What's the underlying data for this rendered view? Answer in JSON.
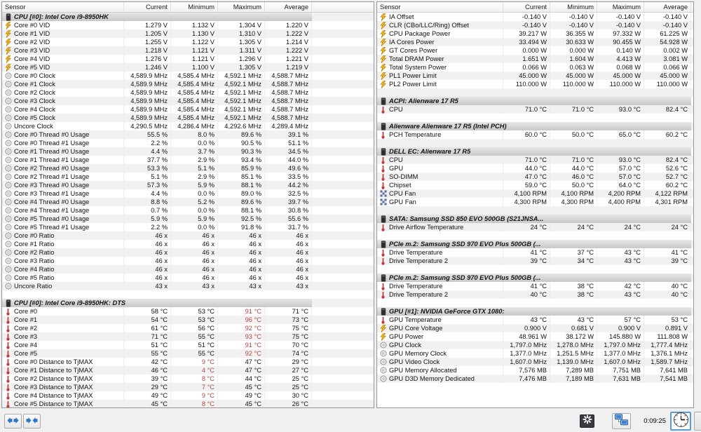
{
  "columns": [
    "Sensor",
    "Current",
    "Minimum",
    "Maximum",
    "Average"
  ],
  "colors": {
    "accent_blue": "#2f74c0",
    "alert_red": "#b34545",
    "group_band": "#c8c8c8",
    "stripe": "#f1f1f1"
  },
  "statusbar": {
    "time": "0:09:25"
  },
  "left_panel": {
    "rows": [
      {
        "t": "group",
        "icon": "chip-icon",
        "label": "CPU [#0]: Intel Core i9-8950HK"
      },
      {
        "t": "row",
        "icon": "voltage-icon",
        "label": "Core #0 VID",
        "v": [
          "1.279 V",
          "1.132 V",
          "1.304 V",
          "1.220 V"
        ]
      },
      {
        "t": "row",
        "icon": "voltage-icon",
        "label": "Core #1 VID",
        "v": [
          "1.205 V",
          "1.130 V",
          "1.310 V",
          "1.222 V"
        ]
      },
      {
        "t": "row",
        "icon": "voltage-icon",
        "label": "Core #2 VID",
        "v": [
          "1.255 V",
          "1.122 V",
          "1.305 V",
          "1.214 V"
        ]
      },
      {
        "t": "row",
        "icon": "voltage-icon",
        "label": "Core #3 VID",
        "v": [
          "1.218 V",
          "1.121 V",
          "1.311 V",
          "1.222 V"
        ]
      },
      {
        "t": "row",
        "icon": "voltage-icon",
        "label": "Core #4 VID",
        "v": [
          "1.276 V",
          "1.121 V",
          "1.296 V",
          "1.221 V"
        ]
      },
      {
        "t": "row",
        "icon": "voltage-icon",
        "label": "Core #5 VID",
        "v": [
          "1.246 V",
          "1.100 V",
          "1.305 V",
          "1.219 V"
        ]
      },
      {
        "t": "row",
        "icon": "clock-icon",
        "label": "Core #0 Clock",
        "v": [
          "4,589.9 MHz",
          "4,585.4 MHz",
          "4,592.1 MHz",
          "4,588.7 MHz"
        ]
      },
      {
        "t": "row",
        "icon": "clock-icon",
        "label": "Core #1 Clock",
        "v": [
          "4,589.9 MHz",
          "4,585.4 MHz",
          "4,592.1 MHz",
          "4,588.7 MHz"
        ]
      },
      {
        "t": "row",
        "icon": "clock-icon",
        "label": "Core #2 Clock",
        "v": [
          "4,589.9 MHz",
          "4,585.4 MHz",
          "4,592.1 MHz",
          "4,588.7 MHz"
        ]
      },
      {
        "t": "row",
        "icon": "clock-icon",
        "label": "Core #3 Clock",
        "v": [
          "4,589.9 MHz",
          "4,585.4 MHz",
          "4,592.1 MHz",
          "4,588.7 MHz"
        ]
      },
      {
        "t": "row",
        "icon": "clock-icon",
        "label": "Core #4 Clock",
        "v": [
          "4,589.9 MHz",
          "4,585.4 MHz",
          "4,592.1 MHz",
          "4,588.7 MHz"
        ]
      },
      {
        "t": "row",
        "icon": "clock-icon",
        "label": "Core #5 Clock",
        "v": [
          "4,589.9 MHz",
          "4,585.4 MHz",
          "4,592.1 MHz",
          "4,588.7 MHz"
        ]
      },
      {
        "t": "row",
        "icon": "clock-icon",
        "label": "Uncore Clock",
        "v": [
          "4,290.5 MHz",
          "4,286.4 MHz",
          "4,292.6 MHz",
          "4,289.4 MHz"
        ]
      },
      {
        "t": "row",
        "icon": "clock-icon",
        "label": "Core #0 Thread #0 Usage",
        "v": [
          "55.5 %",
          "8.0 %",
          "89.6 %",
          "39.1 %"
        ]
      },
      {
        "t": "row",
        "icon": "clock-icon",
        "label": "Core #0 Thread #1 Usage",
        "v": [
          "2.2 %",
          "0.0 %",
          "90.5 %",
          "51.1 %"
        ]
      },
      {
        "t": "row",
        "icon": "clock-icon",
        "label": "Core #1 Thread #0 Usage",
        "v": [
          "4.4 %",
          "3.7 %",
          "90.3 %",
          "34.5 %"
        ]
      },
      {
        "t": "row",
        "icon": "clock-icon",
        "label": "Core #1 Thread #1 Usage",
        "v": [
          "37.7 %",
          "2.9 %",
          "93.4 %",
          "44.0 %"
        ]
      },
      {
        "t": "row",
        "icon": "clock-icon",
        "label": "Core #2 Thread #0 Usage",
        "v": [
          "53.3 %",
          "5.1 %",
          "85.9 %",
          "49.6 %"
        ]
      },
      {
        "t": "row",
        "icon": "clock-icon",
        "label": "Core #2 Thread #1 Usage",
        "v": [
          "5.1 %",
          "2.9 %",
          "85.1 %",
          "33.5 %"
        ]
      },
      {
        "t": "row",
        "icon": "clock-icon",
        "label": "Core #3 Thread #0 Usage",
        "v": [
          "57.3 %",
          "5.9 %",
          "88.1 %",
          "44.2 %"
        ]
      },
      {
        "t": "row",
        "icon": "clock-icon",
        "label": "Core #3 Thread #1 Usage",
        "v": [
          "4.4 %",
          "0.0 %",
          "89.0 %",
          "32.5 %"
        ]
      },
      {
        "t": "row",
        "icon": "clock-icon",
        "label": "Core #4 Thread #0 Usage",
        "v": [
          "8.8 %",
          "5.2 %",
          "89.6 %",
          "39.7 %"
        ]
      },
      {
        "t": "row",
        "icon": "clock-icon",
        "label": "Core #4 Thread #1 Usage",
        "v": [
          "0.7 %",
          "0.0 %",
          "88.1 %",
          "30.8 %"
        ]
      },
      {
        "t": "row",
        "icon": "clock-icon",
        "label": "Core #5 Thread #0 Usage",
        "v": [
          "5.9 %",
          "5.9 %",
          "92.5 %",
          "55.6 %"
        ]
      },
      {
        "t": "row",
        "icon": "clock-icon",
        "label": "Core #5 Thread #1 Usage",
        "v": [
          "2.2 %",
          "0.0 %",
          "91.8 %",
          "31.7 %"
        ]
      },
      {
        "t": "row",
        "icon": "clock-icon",
        "label": "Core #0 Ratio",
        "v": [
          "46 x",
          "46 x",
          "46 x",
          "46 x"
        ]
      },
      {
        "t": "row",
        "icon": "clock-icon",
        "label": "Core #1 Ratio",
        "v": [
          "46 x",
          "46 x",
          "46 x",
          "46 x"
        ]
      },
      {
        "t": "row",
        "icon": "clock-icon",
        "label": "Core #2 Ratio",
        "v": [
          "46 x",
          "46 x",
          "46 x",
          "46 x"
        ]
      },
      {
        "t": "row",
        "icon": "clock-icon",
        "label": "Core #3 Ratio",
        "v": [
          "46 x",
          "46 x",
          "46 x",
          "46 x"
        ]
      },
      {
        "t": "row",
        "icon": "clock-icon",
        "label": "Core #4 Ratio",
        "v": [
          "46 x",
          "46 x",
          "46 x",
          "46 x"
        ]
      },
      {
        "t": "row",
        "icon": "clock-icon",
        "label": "Core #5 Ratio",
        "v": [
          "46 x",
          "46 x",
          "46 x",
          "46 x"
        ]
      },
      {
        "t": "row",
        "icon": "clock-icon",
        "label": "Uncore Ratio",
        "v": [
          "43 x",
          "43 x",
          "43 x",
          "43 x"
        ]
      },
      {
        "t": "blank"
      },
      {
        "t": "group",
        "icon": "chip-icon",
        "label": "CPU [#0]: Intel Core i9-8950HK: DTS"
      },
      {
        "t": "row",
        "icon": "temperature-icon",
        "label": "Core #0",
        "v": [
          "58 °C",
          "53 °C",
          "91 °C",
          "71 °C"
        ],
        "red": [
          2
        ]
      },
      {
        "t": "row",
        "icon": "temperature-icon",
        "label": "Core #1",
        "v": [
          "54 °C",
          "53 °C",
          "96 °C",
          "73 °C"
        ],
        "red": [
          2
        ]
      },
      {
        "t": "row",
        "icon": "temperature-icon",
        "label": "Core #2",
        "v": [
          "61 °C",
          "56 °C",
          "92 °C",
          "75 °C"
        ],
        "red": [
          2
        ]
      },
      {
        "t": "row",
        "icon": "temperature-icon",
        "label": "Core #3",
        "v": [
          "71 °C",
          "55 °C",
          "93 °C",
          "75 °C"
        ],
        "red": [
          2
        ]
      },
      {
        "t": "row",
        "icon": "temperature-icon",
        "label": "Core #4",
        "v": [
          "51 °C",
          "51 °C",
          "91 °C",
          "70 °C"
        ],
        "red": [
          2
        ]
      },
      {
        "t": "row",
        "icon": "temperature-icon",
        "label": "Core #5",
        "v": [
          "55 °C",
          "55 °C",
          "92 °C",
          "74 °C"
        ],
        "red": [
          2
        ]
      },
      {
        "t": "row",
        "icon": "temperature-icon",
        "label": "Core #0 Distance to TjMAX",
        "v": [
          "42 °C",
          "9 °C",
          "47 °C",
          "29 °C"
        ],
        "red": [
          1
        ]
      },
      {
        "t": "row",
        "icon": "temperature-icon",
        "label": "Core #1 Distance to TjMAX",
        "v": [
          "46 °C",
          "4 °C",
          "47 °C",
          "27 °C"
        ],
        "red": [
          1
        ]
      },
      {
        "t": "row",
        "icon": "temperature-icon",
        "label": "Core #2 Distance to TjMAX",
        "v": [
          "39 °C",
          "8 °C",
          "44 °C",
          "25 °C"
        ],
        "red": [
          1
        ]
      },
      {
        "t": "row",
        "icon": "temperature-icon",
        "label": "Core #3 Distance to TjMAX",
        "v": [
          "29 °C",
          "7 °C",
          "45 °C",
          "25 °C"
        ],
        "red": [
          1
        ]
      },
      {
        "t": "row",
        "icon": "temperature-icon",
        "label": "Core #4 Distance to TjMAX",
        "v": [
          "49 °C",
          "9 °C",
          "49 °C",
          "30 °C"
        ],
        "red": [
          1
        ]
      },
      {
        "t": "row",
        "icon": "temperature-icon",
        "label": "Core #5 Distance to TjMAX",
        "v": [
          "45 °C",
          "8 °C",
          "45 °C",
          "26 °C"
        ],
        "red": [
          1
        ]
      }
    ]
  },
  "right_panel": {
    "rows": [
      {
        "t": "row",
        "icon": "voltage-icon",
        "label": "IA Offset",
        "v": [
          "-0.140 V",
          "-0.140 V",
          "-0.140 V",
          "-0.140 V"
        ]
      },
      {
        "t": "row",
        "icon": "voltage-icon",
        "label": "CLR (CBo/LLC/Ring) Offset",
        "v": [
          "-0.140 V",
          "-0.140 V",
          "-0.140 V",
          "-0.140 V"
        ]
      },
      {
        "t": "row",
        "icon": "voltage-icon",
        "label": "CPU Package Power",
        "v": [
          "39.217 W",
          "36.355 W",
          "97.332 W",
          "61.225 W"
        ]
      },
      {
        "t": "row",
        "icon": "voltage-icon",
        "label": "IA Cores Power",
        "v": [
          "33.494 W",
          "30.633 W",
          "90.455 W",
          "54.928 W"
        ]
      },
      {
        "t": "row",
        "icon": "voltage-icon",
        "label": "GT Cores Power",
        "v": [
          "0.000 W",
          "0.000 W",
          "0.140 W",
          "0.002 W"
        ]
      },
      {
        "t": "row",
        "icon": "voltage-icon",
        "label": "Total DRAM Power",
        "v": [
          "1.651 W",
          "1.604 W",
          "4.413 W",
          "3.081 W"
        ]
      },
      {
        "t": "row",
        "icon": "voltage-icon",
        "label": "Total System Power",
        "v": [
          "0.066 W",
          "0.063 W",
          "0.068 W",
          "0.066 W"
        ]
      },
      {
        "t": "row",
        "icon": "voltage-icon",
        "label": "PL1 Power Limit",
        "v": [
          "45.000 W",
          "45.000 W",
          "45.000 W",
          "45.000 W"
        ]
      },
      {
        "t": "row",
        "icon": "voltage-icon",
        "label": "PL2 Power Limit",
        "v": [
          "110.000 W",
          "110.000 W",
          "110.000 W",
          "110.000 W"
        ]
      },
      {
        "t": "blank"
      },
      {
        "t": "group",
        "icon": "chip-icon",
        "label": "ACPI: Alienware 17 R5"
      },
      {
        "t": "row",
        "icon": "temperature-icon",
        "label": "CPU",
        "v": [
          "71.0 °C",
          "71.0 °C",
          "93.0 °C",
          "82.4 °C"
        ]
      },
      {
        "t": "blank"
      },
      {
        "t": "group",
        "icon": "chip-icon",
        "label": "Alienware Alienware 17 R5 (Intel PCH)"
      },
      {
        "t": "row",
        "icon": "temperature-icon",
        "label": "PCH Temperature",
        "v": [
          "60.0 °C",
          "50.0 °C",
          "65.0 °C",
          "60.2 °C"
        ]
      },
      {
        "t": "blank"
      },
      {
        "t": "group",
        "icon": "chip-icon",
        "label": "DELL EC: Alienware 17 R5"
      },
      {
        "t": "row",
        "icon": "temperature-icon",
        "label": "CPU",
        "v": [
          "71.0 °C",
          "71.0 °C",
          "93.0 °C",
          "82.4 °C"
        ]
      },
      {
        "t": "row",
        "icon": "temperature-icon",
        "label": "GPU",
        "v": [
          "44.0 °C",
          "44.0 °C",
          "57.0 °C",
          "52.6 °C"
        ]
      },
      {
        "t": "row",
        "icon": "temperature-icon",
        "label": "SO-DIMM",
        "v": [
          "47.0 °C",
          "46.0 °C",
          "57.0 °C",
          "52.7 °C"
        ]
      },
      {
        "t": "row",
        "icon": "temperature-icon",
        "label": "Chipset",
        "v": [
          "59.0 °C",
          "50.0 °C",
          "64.0 °C",
          "60.2 °C"
        ]
      },
      {
        "t": "row",
        "icon": "fan-icon",
        "label": "CPU Fan",
        "v": [
          "4,100 RPM",
          "4,100 RPM",
          "4,200 RPM",
          "4,122 RPM"
        ]
      },
      {
        "t": "row",
        "icon": "fan-icon",
        "label": "GPU Fan",
        "v": [
          "4,300 RPM",
          "4,300 RPM",
          "4,400 RPM",
          "4,301 RPM"
        ]
      },
      {
        "t": "blank"
      },
      {
        "t": "group",
        "icon": "chip-icon",
        "label": "SATA: Samsung SSD 850 EVO 500GB (S21JNSA..."
      },
      {
        "t": "row",
        "icon": "temperature-icon",
        "label": "Drive Airflow Temperature",
        "v": [
          "24 °C",
          "24 °C",
          "24 °C",
          "24 °C"
        ]
      },
      {
        "t": "blank"
      },
      {
        "t": "group",
        "icon": "chip-icon",
        "label": "PCIe m.2: Samsung SSD 970 EVO Plus 500GB (..."
      },
      {
        "t": "row",
        "icon": "temperature-icon",
        "label": "Drive Temperature",
        "v": [
          "41 °C",
          "37 °C",
          "43 °C",
          "41 °C"
        ]
      },
      {
        "t": "row",
        "icon": "temperature-icon",
        "label": "Drive Temperature 2",
        "v": [
          "39 °C",
          "34 °C",
          "43 °C",
          "39 °C"
        ]
      },
      {
        "t": "blank"
      },
      {
        "t": "group",
        "icon": "chip-icon",
        "label": "PCIe m.2: Samsung SSD 970 EVO Plus 500GB (..."
      },
      {
        "t": "row",
        "icon": "temperature-icon",
        "label": "Drive Temperature",
        "v": [
          "41 °C",
          "38 °C",
          "42 °C",
          "40 °C"
        ]
      },
      {
        "t": "row",
        "icon": "temperature-icon",
        "label": "Drive Temperature 2",
        "v": [
          "40 °C",
          "38 °C",
          "43 °C",
          "40 °C"
        ]
      },
      {
        "t": "blank"
      },
      {
        "t": "group",
        "icon": "chip-icon",
        "label": "GPU [#1]: NVIDIA GeForce GTX 1080:"
      },
      {
        "t": "row",
        "icon": "temperature-icon",
        "label": "GPU Temperature",
        "v": [
          "43 °C",
          "43 °C",
          "57 °C",
          "53 °C"
        ]
      },
      {
        "t": "row",
        "icon": "voltage-icon",
        "label": "GPU Core Voltage",
        "v": [
          "0.900 V",
          "0.681 V",
          "0.900 V",
          "0.891 V"
        ]
      },
      {
        "t": "row",
        "icon": "voltage-icon",
        "label": "GPU Power",
        "v": [
          "48.961 W",
          "38.172 W",
          "145.880 W",
          "111.808 W"
        ]
      },
      {
        "t": "row",
        "icon": "clock-icon",
        "label": "GPU Clock",
        "v": [
          "1,797.0 MHz",
          "1,278.0 MHz",
          "1,797.0 MHz",
          "1,777.4 MHz"
        ]
      },
      {
        "t": "row",
        "icon": "clock-icon",
        "label": "GPU Memory Clock",
        "v": [
          "1,377.0 MHz",
          "1,251.5 MHz",
          "1,377.0 MHz",
          "1,376.1 MHz"
        ]
      },
      {
        "t": "row",
        "icon": "clock-icon",
        "label": "GPU Video Clock",
        "v": [
          "1,607.0 MHz",
          "1,139.0 MHz",
          "1,607.0 MHz",
          "1,589.7 MHz"
        ]
      },
      {
        "t": "row",
        "icon": "clock-icon",
        "label": "GPU Memory Allocated",
        "v": [
          "7,576 MB",
          "7,289 MB",
          "7,751 MB",
          "7,641 MB"
        ]
      },
      {
        "t": "row",
        "icon": "clock-icon",
        "label": "GPU D3D Memory Dedicated",
        "v": [
          "7,476 MB",
          "7,189 MB",
          "7,631 MB",
          "7,541 MB"
        ]
      }
    ]
  }
}
